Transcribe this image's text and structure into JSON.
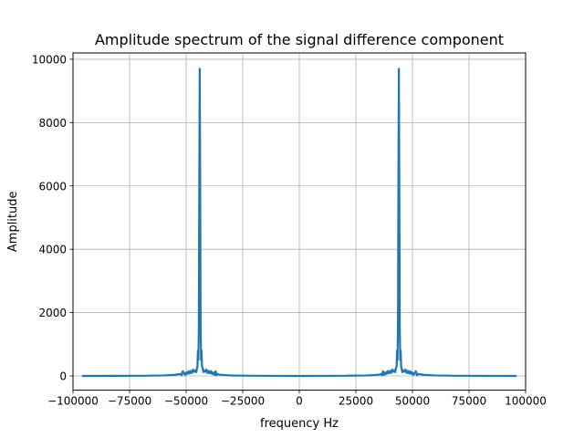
{
  "chart_data": {
    "type": "line",
    "title": "Amplitude spectrum of the signal difference component",
    "xlabel": "frequency Hz",
    "ylabel": "Amplitude",
    "xlim": [
      -100000,
      100000
    ],
    "ylim": [
      -450,
      10200
    ],
    "xticks": [
      -100000,
      -75000,
      -50000,
      -25000,
      0,
      25000,
      50000,
      75000,
      100000
    ],
    "yticks": [
      0,
      2000,
      4000,
      6000,
      8000,
      10000
    ],
    "grid": true,
    "series": [
      {
        "color": "#1f77b4",
        "x": [
          -96000,
          -70000,
          -60000,
          -55000,
          -52500,
          -52000,
          -51500,
          -50500,
          -50000,
          -49500,
          -49000,
          -48500,
          -48000,
          -47500,
          -47000,
          -46500,
          -46000,
          -45500,
          -45200,
          -45000,
          -44800,
          -44600,
          -44400,
          -44200,
          -44000,
          -43800,
          -43600,
          -43400,
          -43200,
          -43000,
          -42700,
          -42400,
          -42000,
          -41500,
          -41000,
          -40500,
          -40000,
          -39500,
          -39000,
          -38500,
          -38000,
          -37500,
          -37000,
          -36500,
          -36000,
          -35000,
          -30000,
          -20000,
          0,
          20000,
          30000,
          35000,
          36000,
          36500,
          37000,
          37500,
          38000,
          38500,
          39000,
          39500,
          40000,
          40500,
          41000,
          41500,
          42000,
          42400,
          42700,
          43000,
          43200,
          43400,
          43600,
          43800,
          44000,
          44200,
          44400,
          44600,
          44800,
          45000,
          45200,
          45500,
          46000,
          46500,
          47000,
          47500,
          48000,
          48500,
          49000,
          49500,
          50000,
          50500,
          51500,
          52000,
          52500,
          55000,
          60000,
          70000,
          96000
        ],
        "y": [
          0,
          5,
          15,
          35,
          60,
          20,
          150,
          30,
          110,
          60,
          150,
          80,
          160,
          90,
          200,
          130,
          180,
          120,
          250,
          300,
          800,
          500,
          1550,
          6000,
          9700,
          6000,
          1550,
          500,
          800,
          300,
          250,
          120,
          180,
          130,
          200,
          90,
          160,
          80,
          150,
          60,
          110,
          30,
          150,
          20,
          60,
          35,
          15,
          5,
          0,
          5,
          15,
          35,
          60,
          20,
          150,
          30,
          110,
          60,
          150,
          80,
          160,
          90,
          200,
          130,
          180,
          120,
          250,
          300,
          800,
          500,
          1550,
          6000,
          9700,
          6000,
          1550,
          500,
          800,
          300,
          250,
          120,
          180,
          130,
          200,
          90,
          160,
          80,
          150,
          60,
          110,
          30,
          150,
          20,
          60,
          35,
          15,
          5,
          0
        ]
      }
    ]
  }
}
